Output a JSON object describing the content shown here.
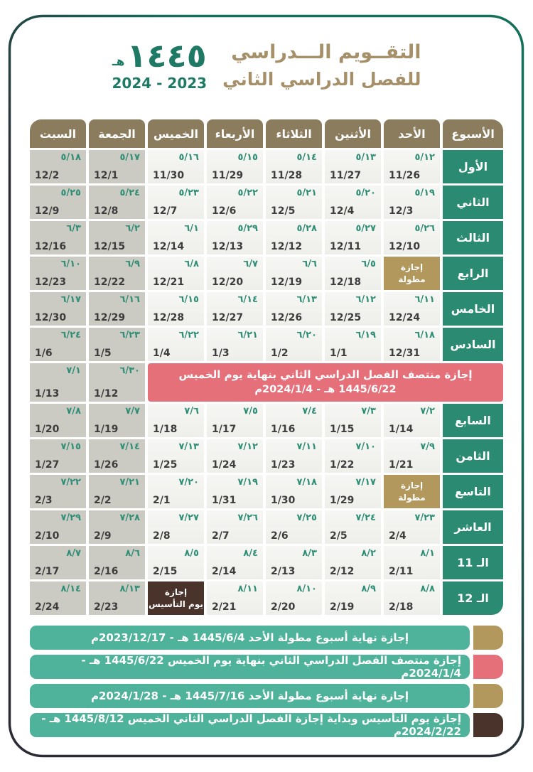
{
  "header": {
    "title_line1": "التقــويم الـــدراسي",
    "title_line2": "للفصل الدراسي الثاني",
    "hijri_year": "١٤٤٥",
    "hijri_era": "هـ",
    "gregorian_years": "2023 - 2024"
  },
  "calendar": {
    "week_col_header": "الأسبوع",
    "day_headers": [
      "الأحد",
      "الأثنين",
      "الثلاثاء",
      "الأربعاء",
      "الخميس",
      "الجمعة",
      "السبت"
    ],
    "long_holiday_label_l1": "إجازة",
    "long_holiday_label_l2": "مطولة",
    "founding_label_l1": "إجازة",
    "founding_label_l2": "يوم التأسيس",
    "banner": {
      "line1": "إجازة منتصف الفصل الدراسي الثاني بنهاية يوم الخميس",
      "line2": "1445/6/22 هـ - 2024/1/4م"
    },
    "rows": [
      {
        "week": "الأول",
        "days": [
          {
            "hijri": "٥/١٢",
            "greg": "11/26"
          },
          {
            "hijri": "٥/١٣",
            "greg": "11/27"
          },
          {
            "hijri": "٥/١٤",
            "greg": "11/28"
          },
          {
            "hijri": "٥/١٥",
            "greg": "11/29"
          },
          {
            "hijri": "٥/١٦",
            "greg": "11/30"
          },
          {
            "hijri": "٥/١٧",
            "greg": "12/1"
          },
          {
            "hijri": "٥/١٨",
            "greg": "12/2"
          }
        ]
      },
      {
        "week": "الثاني",
        "days": [
          {
            "hijri": "٥/١٩",
            "greg": "12/3"
          },
          {
            "hijri": "٥/٢٠",
            "greg": "12/4"
          },
          {
            "hijri": "٥/٢١",
            "greg": "12/5"
          },
          {
            "hijri": "٥/٢٢",
            "greg": "12/6"
          },
          {
            "hijri": "٥/٢٣",
            "greg": "12/7"
          },
          {
            "hijri": "٥/٢٤",
            "greg": "12/8"
          },
          {
            "hijri": "٥/٢٥",
            "greg": "12/9"
          }
        ]
      },
      {
        "week": "الثالث",
        "days": [
          {
            "hijri": "٥/٢٦",
            "greg": "12/10"
          },
          {
            "hijri": "٥/٢٧",
            "greg": "12/11"
          },
          {
            "hijri": "٥/٢٨",
            "greg": "12/12"
          },
          {
            "hijri": "٥/٢٩",
            "greg": "12/13"
          },
          {
            "hijri": "٦/١",
            "greg": "12/14"
          },
          {
            "hijri": "٦/٢",
            "greg": "12/15"
          },
          {
            "hijri": "٦/٣",
            "greg": "12/16"
          }
        ]
      },
      {
        "week": "الرابع",
        "days": [
          {
            "holiday": "long"
          },
          {
            "hijri": "٦/٥",
            "greg": "12/18"
          },
          {
            "hijri": "٦/٦",
            "greg": "12/19"
          },
          {
            "hijri": "٦/٧",
            "greg": "12/20"
          },
          {
            "hijri": "٦/٨",
            "greg": "12/21"
          },
          {
            "hijri": "٦/٩",
            "greg": "12/22"
          },
          {
            "hijri": "٦/١٠",
            "greg": "12/23"
          }
        ]
      },
      {
        "week": "الخامس",
        "days": [
          {
            "hijri": "٦/١١",
            "greg": "12/24"
          },
          {
            "hijri": "٦/١٢",
            "greg": "12/25"
          },
          {
            "hijri": "٦/١٣",
            "greg": "12/26"
          },
          {
            "hijri": "٦/١٤",
            "greg": "12/27"
          },
          {
            "hijri": "٦/١٥",
            "greg": "12/28"
          },
          {
            "hijri": "٦/١٦",
            "greg": "12/29"
          },
          {
            "hijri": "٦/١٧",
            "greg": "12/30"
          }
        ]
      },
      {
        "week": "السادس",
        "days": [
          {
            "hijri": "٦/١٨",
            "greg": "12/31"
          },
          {
            "hijri": "٦/١٩",
            "greg": "1/1"
          },
          {
            "hijri": "٦/٢٠",
            "greg": "1/2"
          },
          {
            "hijri": "٦/٢١",
            "greg": "1/3"
          },
          {
            "hijri": "٦/٢٢",
            "greg": "1/4"
          },
          {
            "hijri": "٦/٢٣",
            "greg": "1/5"
          },
          {
            "hijri": "٦/٢٤",
            "greg": "1/6"
          }
        ]
      },
      {
        "banner": true,
        "days": [
          {
            "hijri": "٦/٣٠",
            "greg": "1/12"
          },
          {
            "hijri": "٧/١",
            "greg": "1/13"
          }
        ]
      },
      {
        "week": "السابع",
        "days": [
          {
            "hijri": "٧/٢",
            "greg": "1/14"
          },
          {
            "hijri": "٧/٣",
            "greg": "1/15"
          },
          {
            "hijri": "٧/٤",
            "greg": "1/16"
          },
          {
            "hijri": "٧/٥",
            "greg": "1/17"
          },
          {
            "hijri": "٧/٦",
            "greg": "1/18"
          },
          {
            "hijri": "٧/٧",
            "greg": "1/19"
          },
          {
            "hijri": "٧/٨",
            "greg": "1/20"
          }
        ]
      },
      {
        "week": "الثامن",
        "days": [
          {
            "hijri": "٧/٩",
            "greg": "1/21"
          },
          {
            "hijri": "٧/١٠",
            "greg": "1/22"
          },
          {
            "hijri": "٧/١١",
            "greg": "1/23"
          },
          {
            "hijri": "٧/١٢",
            "greg": "1/24"
          },
          {
            "hijri": "٧/١٣",
            "greg": "1/25"
          },
          {
            "hijri": "٧/١٤",
            "greg": "1/26"
          },
          {
            "hijri": "٧/١٥",
            "greg": "1/27"
          }
        ]
      },
      {
        "week": "التاسع",
        "days": [
          {
            "holiday": "long"
          },
          {
            "hijri": "٧/١٧",
            "greg": "1/29"
          },
          {
            "hijri": "٧/١٨",
            "greg": "1/30"
          },
          {
            "hijri": "٧/١٩",
            "greg": "1/31"
          },
          {
            "hijri": "٧/٢٠",
            "greg": "2/1"
          },
          {
            "hijri": "٧/٢١",
            "greg": "2/2"
          },
          {
            "hijri": "٧/٢٢",
            "greg": "2/3"
          }
        ]
      },
      {
        "week": "العاشر",
        "days": [
          {
            "hijri": "٧/٢٣",
            "greg": "2/4"
          },
          {
            "hijri": "٧/٢٤",
            "greg": "2/5"
          },
          {
            "hijri": "٧/٢٥",
            "greg": "2/6"
          },
          {
            "hijri": "٧/٢٦",
            "greg": "2/7"
          },
          {
            "hijri": "٧/٢٧",
            "greg": "2/8"
          },
          {
            "hijri": "٧/٢٨",
            "greg": "2/9"
          },
          {
            "hijri": "٧/٢٩",
            "greg": "2/10"
          }
        ]
      },
      {
        "week": "الـ 11",
        "days": [
          {
            "hijri": "٨/١",
            "greg": "2/11"
          },
          {
            "hijri": "٨/٢",
            "greg": "2/12"
          },
          {
            "hijri": "٨/٣",
            "greg": "2/13"
          },
          {
            "hijri": "٨/٤",
            "greg": "2/14"
          },
          {
            "hijri": "٨/٥",
            "greg": "2/15"
          },
          {
            "hijri": "٨/٦",
            "greg": "2/16"
          },
          {
            "hijri": "٨/٧",
            "greg": "2/17"
          }
        ]
      },
      {
        "week": "الـ 12",
        "days": [
          {
            "hijri": "٨/٨",
            "greg": "2/18"
          },
          {
            "hijri": "٨/٩",
            "greg": "2/19"
          },
          {
            "hijri": "٨/١٠",
            "greg": "2/20"
          },
          {
            "hijri": "٨/١١",
            "greg": "2/21"
          },
          {
            "holiday": "founding"
          },
          {
            "hijri": "٨/١٣",
            "greg": "2/23"
          },
          {
            "hijri": "٨/١٤",
            "greg": "2/24"
          }
        ]
      }
    ],
    "weekend_columns": [
      5,
      6
    ],
    "colors": {
      "header_bg": "#8b7c5e",
      "week_label_bg": "#2b8b72",
      "weekday_bg": "#f3f3f0",
      "weekend_bg": "#cbcac3",
      "hijri_green": "#2f8e75",
      "gregorian_text": "#3d3d3d",
      "banner_red": "#e5707a",
      "holiday_gold": "#b2985c",
      "founding_brown": "#4a332b",
      "frame_green": "#15705b",
      "frame_dark": "#2c2b35",
      "title_tan": "#a6906a",
      "accent_green": "#1e7a64",
      "legend_teal": "#4fb29b"
    }
  },
  "legend": {
    "items": [
      {
        "text": "إجازة نهاية أسبوع مطولة الأحد 1445/6/4 هـ - 2023/12/17م",
        "marker_color": "#b2985c"
      },
      {
        "text": "إجازة منتصف الفصل الدراسي الثاني بنهاية يوم الخميس 1445/6/22 هـ - 2024/1/4م",
        "marker_color": "#e5707a"
      },
      {
        "text": "إجازة نهاية أسبوع مطولة الأحد 1445/7/16 هـ - 2024/1/28م",
        "marker_color": "#b2985c"
      },
      {
        "text": "إجازة يوم التأسيس وبداية إجازة الفصل الدراسي الثاني الخميس 1445/8/12 هـ - 2024/2/22م",
        "marker_color": "#4a332b"
      }
    ]
  }
}
